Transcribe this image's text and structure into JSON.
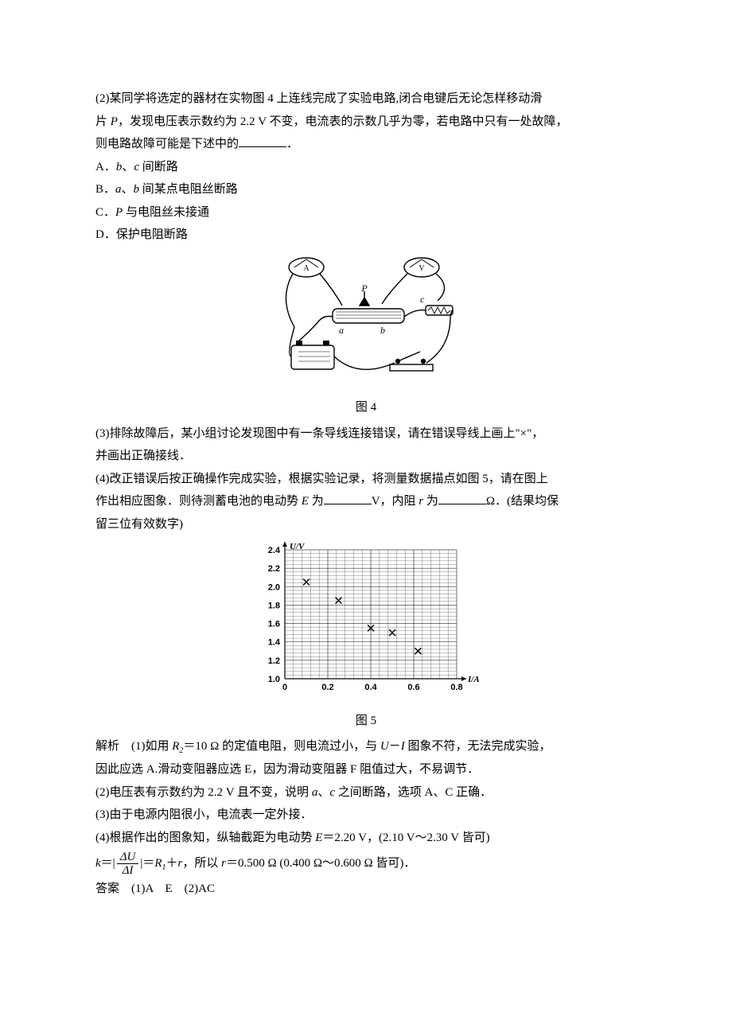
{
  "q2": {
    "text_a": "(2)某同学将选定的器材在实物图 4 上连线完成了实验电路,闭合电键后无论怎样移动滑",
    "text_b": "片 ",
    "text_c": "，发现电压表示数约为 2.2 V 不变，电流表的示数几乎为零，若电路中只有一处故障，",
    "text_d": "则电路故障可能是下述中的",
    "text_e": "．"
  },
  "opts": {
    "A_pre": "A．",
    "A_mid": "、",
    "A_post": " 间断路",
    "B_pre": "B．",
    "B_mid": "、",
    "B_post": " 间某点电阻丝断路",
    "C_pre": "C．",
    "C_post": " 与电阻丝未接通",
    "D": "D．保护电阻断路"
  },
  "letters": {
    "P": "P",
    "a": "a",
    "b": "b",
    "c": "c"
  },
  "fig4": {
    "caption": "图 4",
    "labels": {
      "P": "P",
      "a": "a",
      "b": "b",
      "c": "c"
    },
    "colors": {
      "stroke": "#000000",
      "fill": "#ffffff"
    }
  },
  "q3": {
    "text_a": "(3)排除故障后，某小组讨论发现图中有一条导线连接错误，请在错误导线上画上\"×\"，",
    "text_b": "并画出正确接线．"
  },
  "q4": {
    "text_a": "(4)改正错误后按正确操作完成实验，根据实验记录，将测量数据描点如图 5，请在图上",
    "text_b": "作出相应图象．则待测蓄电池的电动势 ",
    "text_c": " 为",
    "text_d": "V，内阻 ",
    "text_e": " 为",
    "text_f": "Ω．(结果均保",
    "text_g": "留三位有效数字)"
  },
  "sym": {
    "E": "E",
    "r": "r",
    "R1": "R",
    "R1sub": "1",
    "R2": "R",
    "R2sub": "2",
    "U": "U",
    "I": "I",
    "k": "k",
    "dU": "ΔU",
    "dI": "ΔI"
  },
  "chart": {
    "caption": "图 5",
    "xlabel": "I/A",
    "ylabel": "U/V",
    "xlim": [
      0,
      0.8
    ],
    "ylim": [
      1.0,
      2.4
    ],
    "xtick_step": 0.2,
    "ytick_step": 0.2,
    "xticks": [
      "0",
      "0.2",
      "0.4",
      "0.6",
      "0.8"
    ],
    "yticks": [
      "1.0",
      "1.2",
      "1.4",
      "1.6",
      "1.8",
      "2.0",
      "2.2",
      "2.4"
    ],
    "grid_minor_div": 5,
    "grid_color": "#000000",
    "grid_stroke": 0.4,
    "grid_minor_stroke": 0.25,
    "axis_stroke": 1.2,
    "bg": "#ffffff",
    "marker": "x",
    "marker_size": 4,
    "marker_color": "#000000",
    "points": [
      {
        "x": 0.1,
        "y": 2.05
      },
      {
        "x": 0.25,
        "y": 1.85
      },
      {
        "x": 0.4,
        "y": 1.55
      },
      {
        "x": 0.5,
        "y": 1.5
      },
      {
        "x": 0.62,
        "y": 1.3
      }
    ],
    "label_fontsize": 11,
    "tick_fontsize": 11,
    "font_weight": "bold"
  },
  "sol": {
    "l1a": "解析　(1)如用 ",
    "l1b": "＝10 Ω 的定值电阻，则电流过小，与 ",
    "l1c": "－",
    "l1d": " 图象不符，无法完成实验，",
    "l2": "因此应选 A.滑动变阻器应选 E，因为滑动变阻器 F 阻值过大，不易调节．",
    "l3a": "(2)电压表有示数约为 2.2 V 且不变，说明 ",
    "l3b": "、",
    "l3c": " 之间断路，选项 A、C 正确．",
    "l4": "(3)由于电源内阻很小，电流表一定外接．",
    "l5a": "(4)根据作出的图象知，纵轴截距为电动势 ",
    "l5b": "＝2.20 V，(2.10 V～2.30 V 皆可)",
    "l6a": "＝|",
    "l6b": "|＝",
    "l6c": "＋",
    "l6d": "，所以 ",
    "l6e": "＝0.500 Ω (0.400 Ω～0.600 Ω 皆可)．"
  },
  "ans": {
    "label": "答案　",
    "t": "(1)A　E　(2)AC"
  }
}
